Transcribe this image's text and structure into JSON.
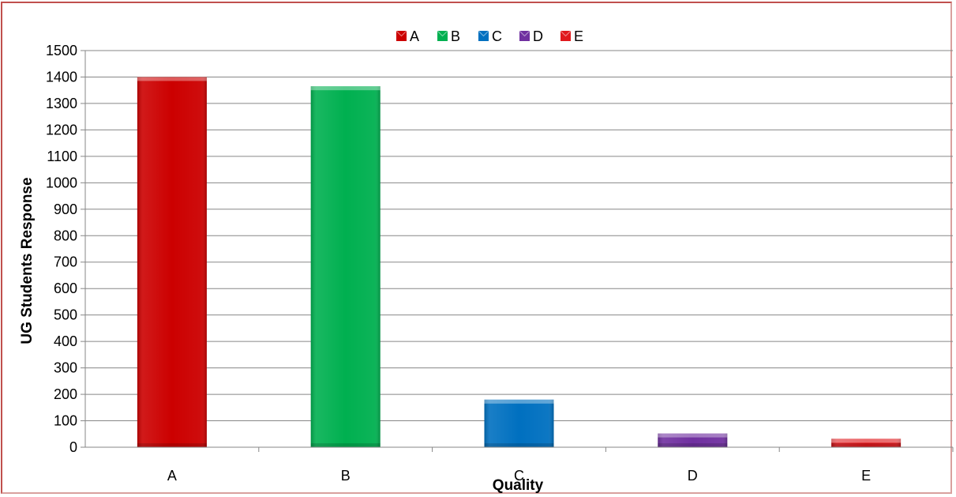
{
  "chart_data": {
    "type": "bar",
    "categories": [
      "A",
      "B",
      "C",
      "D",
      "E"
    ],
    "values": [
      1400,
      1365,
      180,
      52,
      32
    ],
    "colors": [
      "#cc0000",
      "#00b050",
      "#0070c0",
      "#7030a0",
      "#e0191d"
    ],
    "legend": {
      "position": "top",
      "entries": [
        "A",
        "B",
        "C",
        "D",
        "E"
      ]
    },
    "title": "",
    "xlabel": "Quality",
    "ylabel": "UG Students Response",
    "ylim": [
      0,
      1500
    ],
    "yticks": [
      0,
      100,
      200,
      300,
      400,
      500,
      600,
      700,
      800,
      900,
      1000,
      1100,
      1200,
      1300,
      1400,
      1500
    ],
    "grid": true
  }
}
